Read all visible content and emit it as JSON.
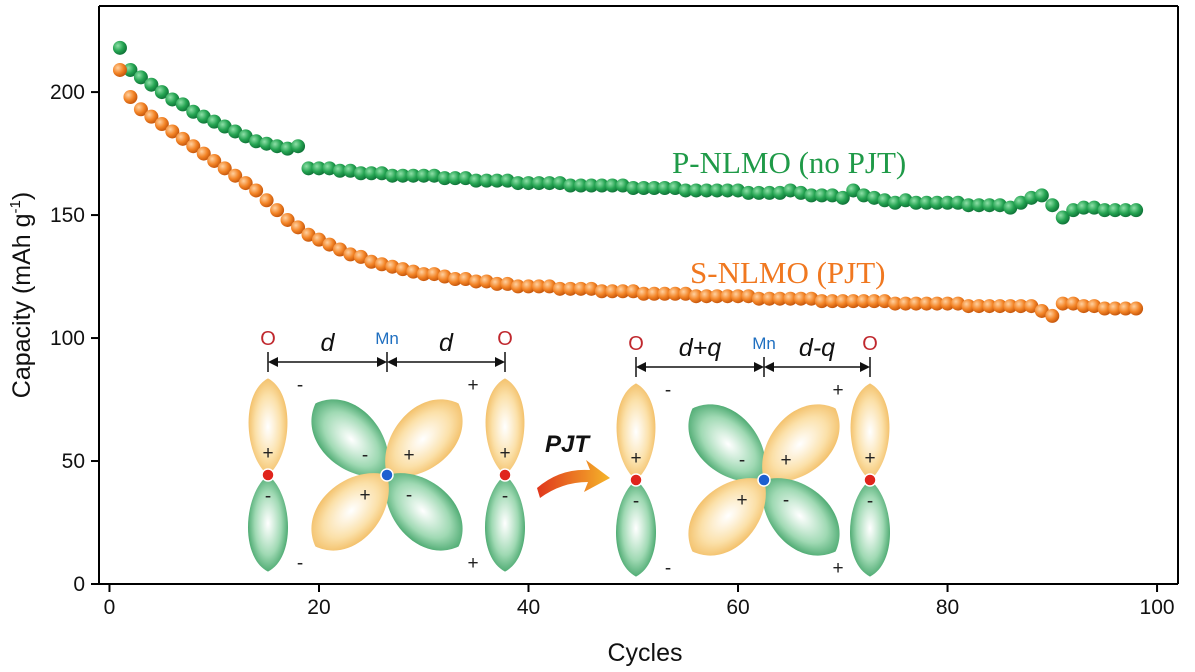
{
  "chart_data": {
    "type": "scatter",
    "xlabel": "Cycles",
    "ylabel": "Capacity (mAh g",
    "ylabel_sup": "-1",
    "ylabel_close": ")",
    "xlim": [
      -1,
      102
    ],
    "ylim": [
      0,
      235
    ],
    "x_ticks": [
      "0",
      "20",
      "40",
      "60",
      "80",
      "100"
    ],
    "y_ticks": [
      "0",
      "50",
      "100",
      "150",
      "200"
    ],
    "series": [
      {
        "name": "P-NLMO (no PJT)",
        "color": "#1f9a48",
        "x": [
          1,
          2,
          3,
          4,
          5,
          6,
          7,
          8,
          9,
          10,
          11,
          12,
          13,
          14,
          15,
          16,
          17,
          18,
          19,
          20,
          21,
          22,
          23,
          24,
          25,
          26,
          27,
          28,
          29,
          30,
          31,
          32,
          33,
          34,
          35,
          36,
          37,
          38,
          39,
          40,
          41,
          42,
          43,
          44,
          45,
          46,
          47,
          48,
          49,
          50,
          51,
          52,
          53,
          54,
          55,
          56,
          57,
          58,
          59,
          60,
          61,
          62,
          63,
          64,
          65,
          66,
          67,
          68,
          69,
          70,
          71,
          72,
          73,
          74,
          75,
          76,
          77,
          78,
          79,
          80,
          81,
          82,
          83,
          84,
          85,
          86,
          87,
          88,
          89,
          90,
          91,
          92,
          93,
          94,
          95,
          96,
          97,
          98
        ],
        "y": [
          218,
          209,
          206,
          203,
          200,
          197,
          195,
          192,
          190,
          188,
          186,
          184,
          182,
          180,
          179,
          178,
          177,
          178,
          169,
          169,
          169,
          168,
          168,
          167,
          167,
          167,
          166,
          166,
          166,
          166,
          166,
          165,
          165,
          165,
          164,
          164,
          164,
          164,
          163,
          163,
          163,
          163,
          163,
          162,
          162,
          162,
          162,
          162,
          162,
          161,
          161,
          161,
          161,
          161,
          160,
          160,
          160,
          160,
          160,
          160,
          159,
          159,
          159,
          159,
          160,
          159,
          158,
          158,
          158,
          157,
          160,
          158,
          157,
          156,
          155,
          156,
          155,
          155,
          155,
          155,
          155,
          154,
          154,
          154,
          154,
          153,
          155,
          157,
          158,
          154,
          149,
          152,
          153,
          153,
          152,
          152,
          152,
          152
        ]
      },
      {
        "name": "S-NLMO (PJT)",
        "color": "#f07820",
        "x": [
          1,
          2,
          3,
          4,
          5,
          6,
          7,
          8,
          9,
          10,
          11,
          12,
          13,
          14,
          15,
          16,
          17,
          18,
          19,
          20,
          21,
          22,
          23,
          24,
          25,
          26,
          27,
          28,
          29,
          30,
          31,
          32,
          33,
          34,
          35,
          36,
          37,
          38,
          39,
          40,
          41,
          42,
          43,
          44,
          45,
          46,
          47,
          48,
          49,
          50,
          51,
          52,
          53,
          54,
          55,
          56,
          57,
          58,
          59,
          60,
          61,
          62,
          63,
          64,
          65,
          66,
          67,
          68,
          69,
          70,
          71,
          72,
          73,
          74,
          75,
          76,
          77,
          78,
          79,
          80,
          81,
          82,
          83,
          84,
          85,
          86,
          87,
          88,
          89,
          90,
          91,
          92,
          93,
          94,
          95,
          96,
          97,
          98
        ],
        "y": [
          209,
          198,
          193,
          190,
          187,
          184,
          181,
          178,
          175,
          172,
          169,
          166,
          163,
          160,
          156,
          152,
          148,
          145,
          142,
          140,
          138,
          136,
          134,
          133,
          131,
          130,
          129,
          128,
          127,
          126,
          126,
          125,
          124,
          124,
          123,
          123,
          122,
          122,
          121,
          121,
          121,
          121,
          120,
          120,
          120,
          120,
          119,
          119,
          119,
          119,
          118,
          118,
          118,
          118,
          118,
          117,
          117,
          117,
          117,
          117,
          117,
          116,
          116,
          116,
          116,
          116,
          116,
          115,
          115,
          115,
          115,
          115,
          115,
          115,
          114,
          114,
          114,
          114,
          114,
          114,
          114,
          113,
          113,
          113,
          113,
          113,
          113,
          113,
          111,
          109,
          114,
          114,
          113,
          113,
          112,
          112,
          112,
          112
        ]
      }
    ],
    "legend_position": "inline",
    "grid": false
  },
  "inset": {
    "left": {
      "o_left": "O",
      "mn": "Mn",
      "o_right": "O",
      "dist_left": "d",
      "dist_right": "d"
    },
    "right": {
      "o_left": "O",
      "mn": "Mn",
      "o_right": "O",
      "dist_left": "d+q",
      "dist_right": "d-q"
    },
    "transition": "PJT",
    "plus": "+",
    "minus": "-"
  }
}
